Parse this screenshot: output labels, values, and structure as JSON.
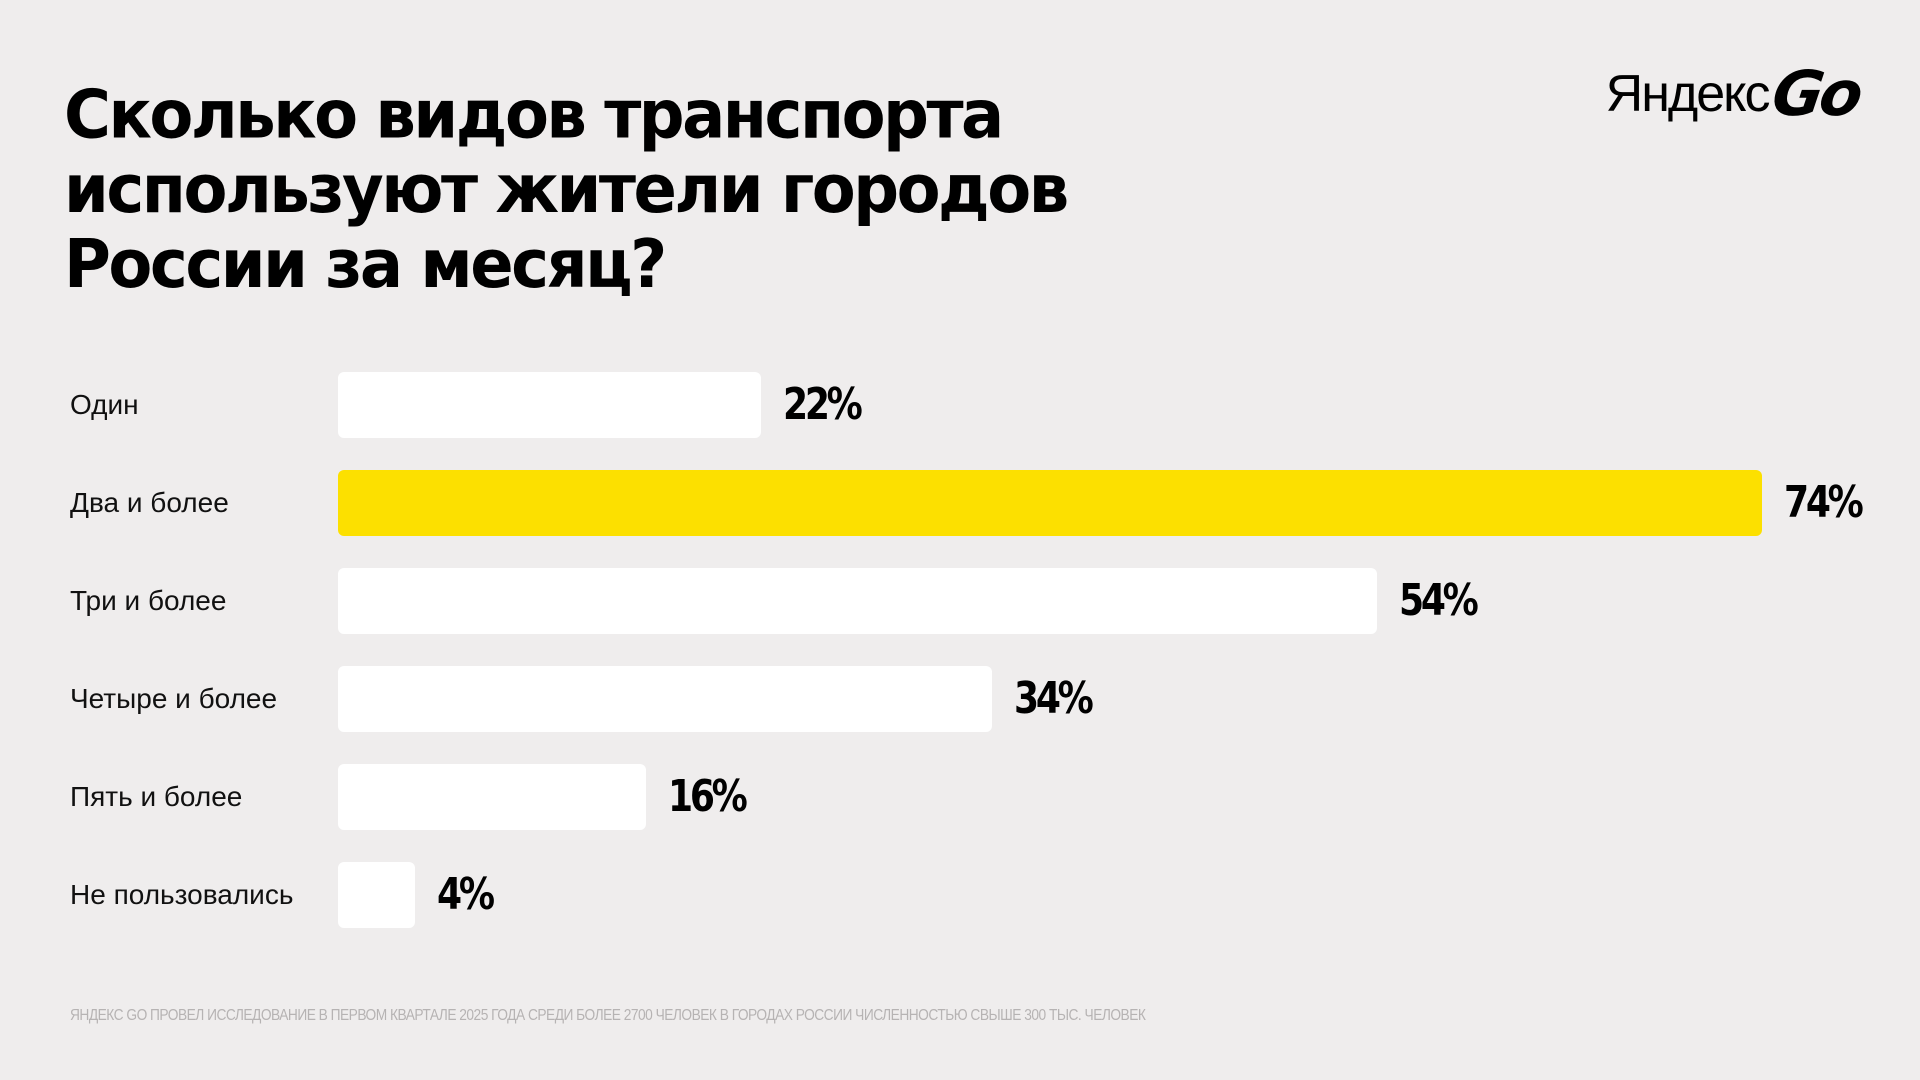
{
  "title_lines": [
    "Сколько видов транспорта",
    "используют жители городов",
    "России за месяц?"
  ],
  "logo": {
    "word": "Яндекс",
    "go": "Go"
  },
  "colors": {
    "background": "#efeded",
    "bar": "#ffffff",
    "highlight": "#fce000",
    "text": "#000000",
    "footnote": "#b6b3b3"
  },
  "chart_data": {
    "type": "bar",
    "orientation": "horizontal",
    "categories": [
      "Один",
      "Два и более",
      "Три и более",
      "Четыре и более",
      "Пять и более",
      "Не пользовались"
    ],
    "values": [
      22,
      74,
      54,
      34,
      16,
      4
    ],
    "value_labels": [
      "22%",
      "74%",
      "54%",
      "34%",
      "16%",
      "4%"
    ],
    "highlight_index": 1,
    "unit": "%",
    "xlim": [
      0,
      74
    ],
    "grid": false
  },
  "footnote": "ЯНДЕКС GO ПРОВЕЛ ИССЛЕДОВАНИЕ В ПЕРВОМ КВАРТАЛЕ 2025 ГОДА СРЕДИ БОЛЕЕ 2700 ЧЕЛОВЕК В ГОРОДАХ РОССИИ ЧИСЛЕННОСТЬЮ СВЫШЕ 300 ТЫС. ЧЕЛОВЕК"
}
